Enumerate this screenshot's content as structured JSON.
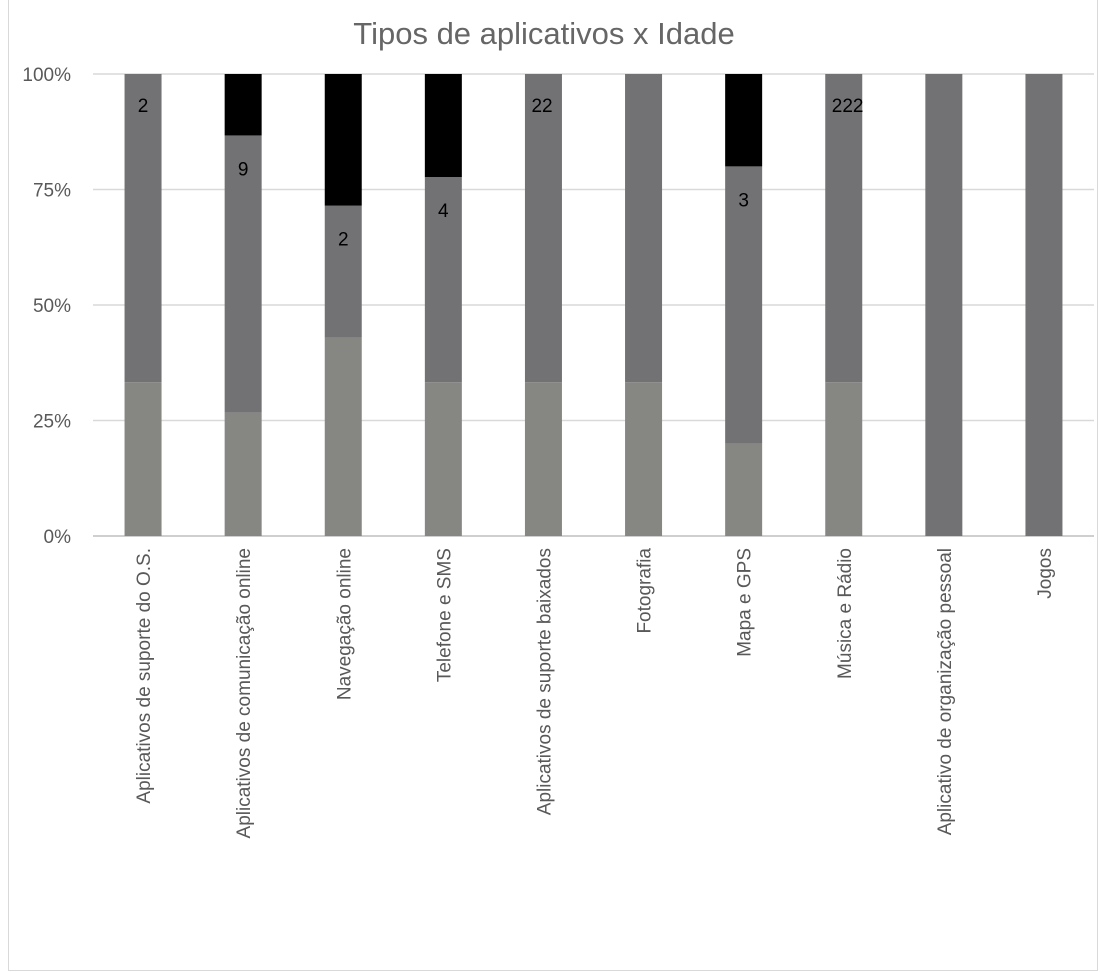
{
  "chart_data": {
    "type": "bar",
    "stacked": true,
    "normalized": true,
    "title": "Tipos de aplicativos x Idade",
    "xlabel": "",
    "ylabel": "",
    "ylim": [
      0,
      100
    ],
    "yticks": [
      "0%",
      "25%",
      "50%",
      "75%",
      "100%"
    ],
    "grid": true,
    "legend": "none",
    "categories": [
      "Aplicativos de suporte do O.S.",
      "Aplicativos de comunicação online",
      "Navegação online",
      "Telefone e SMS",
      "Aplicativos de suporte baixados",
      "Fotografia",
      "Mapa e GPS",
      "Música e Rádio",
      "Aplicativo de organização pessoal",
      "Jogos"
    ],
    "series": [
      {
        "color": "#868783",
        "values": [
          33.3,
          26.7,
          42.9,
          33.3,
          33.3,
          33.3,
          20.0,
          33.3,
          0,
          0
        ]
      },
      {
        "color": "#727274",
        "values": [
          66.7,
          60.0,
          28.6,
          44.4,
          66.7,
          66.7,
          60.0,
          66.7,
          100,
          100
        ]
      },
      {
        "color": "#000000",
        "values": [
          0,
          13.3,
          28.5,
          22.3,
          0,
          0,
          20.0,
          0,
          0,
          0
        ]
      }
    ],
    "data_labels": [
      "2",
      "9",
      "2",
      "4",
      "22",
      "",
      "3",
      "222",
      "",
      ""
    ]
  }
}
